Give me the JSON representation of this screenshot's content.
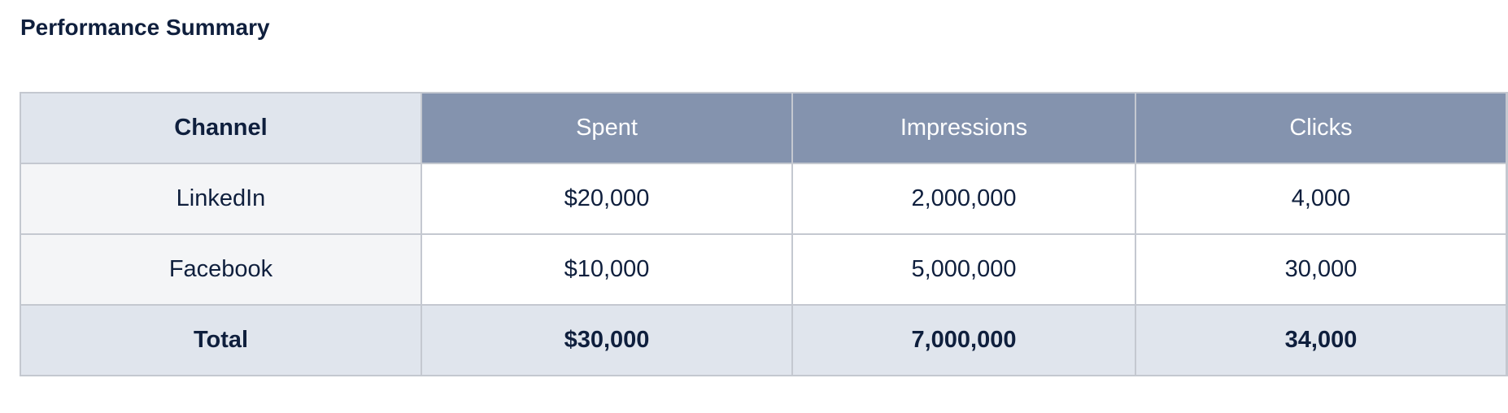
{
  "title": "Performance Summary",
  "table": {
    "headers": [
      "Channel",
      "Spent",
      "Impressions",
      "Clicks",
      ""
    ],
    "rows": [
      [
        "LinkedIn",
        "$20,000",
        "2,000,000",
        "4,000",
        ""
      ],
      [
        "Facebook",
        "$10,000",
        "5,000,000",
        "30,000",
        ""
      ]
    ],
    "total": [
      "Total",
      "$30,000",
      "7,000,000",
      "34,000",
      ""
    ]
  },
  "colors": {
    "header_bg": "#8493ae",
    "label_header_bg": "#e0e5ed",
    "label_col_bg": "#f4f5f7",
    "border": "#c4c8d0",
    "text": "#0f1f3d"
  }
}
